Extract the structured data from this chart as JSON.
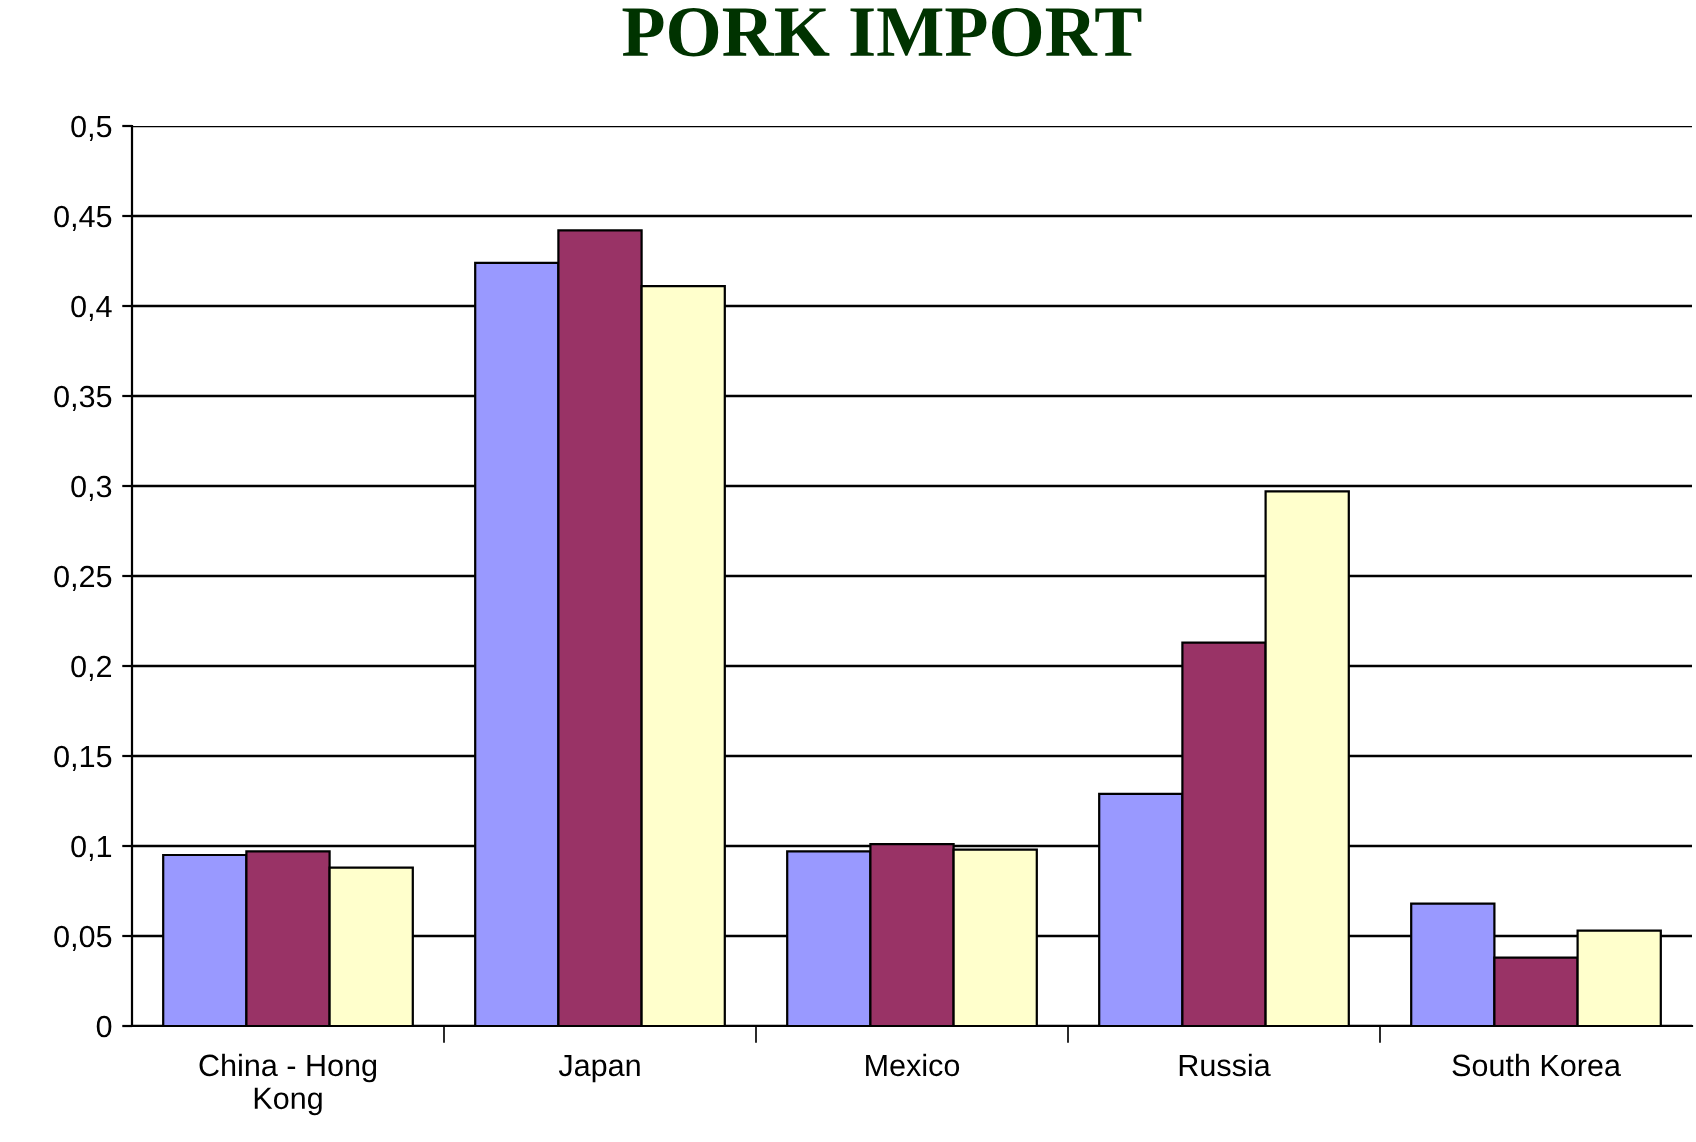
{
  "chart_data": {
    "type": "bar",
    "title": "PORK IMPORT",
    "categories": [
      "China - Hong\nKong",
      "Japan",
      "Mexico",
      "Russia",
      "South Korea"
    ],
    "series": [
      {
        "color": "#9999ff",
        "values": [
          0.095,
          0.424,
          0.097,
          0.129,
          0.068
        ]
      },
      {
        "color": "#993366",
        "values": [
          0.097,
          0.442,
          0.101,
          0.213,
          0.038
        ]
      },
      {
        "color": "#ffffcc",
        "values": [
          0.088,
          0.411,
          0.098,
          0.297,
          0.053
        ]
      }
    ],
    "ylim": [
      0,
      0.5
    ],
    "yticks": [
      {
        "value": 0,
        "label": "0"
      },
      {
        "value": 0.05,
        "label": "0,05"
      },
      {
        "value": 0.1,
        "label": "0,1"
      },
      {
        "value": 0.15,
        "label": "0,15"
      },
      {
        "value": 0.2,
        "label": "0,2"
      },
      {
        "value": 0.25,
        "label": "0,25"
      },
      {
        "value": 0.3,
        "label": "0,3"
      },
      {
        "value": 0.35,
        "label": "0,35"
      },
      {
        "value": 0.4,
        "label": "0,4"
      },
      {
        "value": 0.45,
        "label": "0,45"
      },
      {
        "value": 0.5,
        "label": "0,5"
      }
    ],
    "grid": "y",
    "legend": false
  }
}
